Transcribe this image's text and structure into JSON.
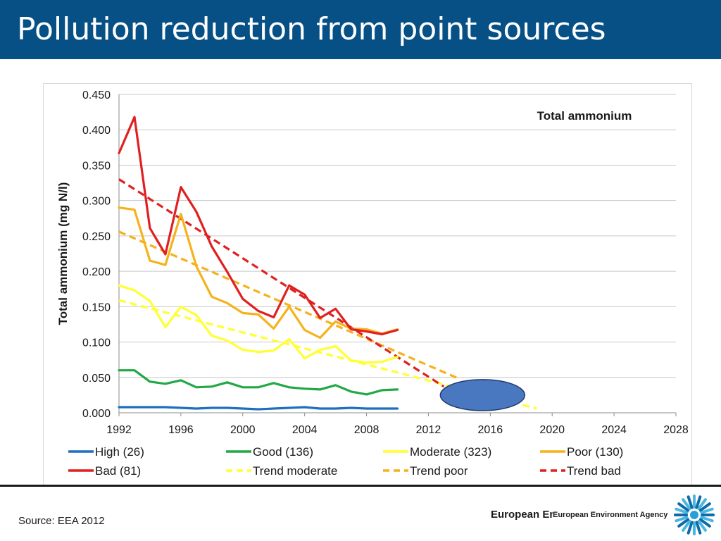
{
  "slide": {
    "title": "Pollution reduction from point sources",
    "source": "Source: EEA 2012",
    "agency_wordmark": "European Environment Agency",
    "agency_name": "European Environment Agency",
    "colors": {
      "title_bar": "#065085",
      "text": "#1a1a1a"
    }
  },
  "chart_data": {
    "type": "line",
    "title": "Total ammonium",
    "ylabel": "Total ammonium (mg N/l)",
    "xlabel": "",
    "xlim": [
      1992,
      2028
    ],
    "ylim": [
      0,
      0.45
    ],
    "x_ticks": [
      "1992",
      "1996",
      "2000",
      "2004",
      "2008",
      "2012",
      "2016",
      "2020",
      "2024",
      "2028"
    ],
    "y_ticks": [
      "0.000",
      "0.050",
      "0.100",
      "0.150",
      "0.200",
      "0.250",
      "0.300",
      "0.350",
      "0.400",
      "0.450"
    ],
    "grid": "horizontal",
    "legend_position": "bottom",
    "series": [
      {
        "name": "High (26)",
        "color": "#1f6fbf",
        "dash": false,
        "x": [
          1992,
          1993,
          1994,
          1995,
          1996,
          1997,
          1998,
          1999,
          2000,
          2001,
          2002,
          2003,
          2004,
          2005,
          2006,
          2007,
          2008,
          2009,
          2010
        ],
        "y": [
          0.008,
          0.008,
          0.008,
          0.008,
          0.007,
          0.006,
          0.007,
          0.007,
          0.006,
          0.005,
          0.006,
          0.007,
          0.008,
          0.006,
          0.006,
          0.007,
          0.006,
          0.006,
          0.006
        ]
      },
      {
        "name": "Good (136)",
        "color": "#22a845",
        "dash": false,
        "x": [
          1992,
          1993,
          1994,
          1995,
          1996,
          1997,
          1998,
          1999,
          2000,
          2001,
          2002,
          2003,
          2004,
          2005,
          2006,
          2007,
          2008,
          2009,
          2010
        ],
        "y": [
          0.06,
          0.06,
          0.044,
          0.041,
          0.046,
          0.036,
          0.037,
          0.043,
          0.036,
          0.036,
          0.042,
          0.036,
          0.034,
          0.033,
          0.039,
          0.03,
          0.026,
          0.032,
          0.033
        ]
      },
      {
        "name": "Moderate (323)",
        "color": "#ffff33",
        "dash": false,
        "x": [
          1992,
          1993,
          1994,
          1995,
          1996,
          1997,
          1998,
          1999,
          2000,
          2001,
          2002,
          2003,
          2004,
          2005,
          2006,
          2007,
          2008,
          2009,
          2010
        ],
        "y": [
          0.18,
          0.173,
          0.158,
          0.121,
          0.15,
          0.138,
          0.109,
          0.102,
          0.089,
          0.086,
          0.088,
          0.104,
          0.077,
          0.089,
          0.094,
          0.074,
          0.071,
          0.072,
          0.079
        ]
      },
      {
        "name": "Poor (130)",
        "color": "#f5b21b",
        "dash": false,
        "x": [
          1992,
          1993,
          1994,
          1995,
          1996,
          1997,
          1998,
          1999,
          2000,
          2001,
          2002,
          2003,
          2004,
          2005,
          2006,
          2007,
          2008,
          2009,
          2010
        ],
        "y": [
          0.29,
          0.287,
          0.215,
          0.209,
          0.281,
          0.207,
          0.164,
          0.155,
          0.141,
          0.139,
          0.119,
          0.15,
          0.117,
          0.106,
          0.129,
          0.119,
          0.118,
          0.112,
          0.118
        ]
      },
      {
        "name": "Bad (81)",
        "color": "#e02020",
        "dash": false,
        "x": [
          1992,
          1993,
          1994,
          1995,
          1996,
          1997,
          1998,
          1999,
          2000,
          2001,
          2002,
          2003,
          2004,
          2005,
          2006,
          2007,
          2008,
          2009,
          2010
        ],
        "y": [
          0.367,
          0.418,
          0.261,
          0.224,
          0.319,
          0.284,
          0.235,
          0.199,
          0.161,
          0.144,
          0.135,
          0.18,
          0.167,
          0.134,
          0.147,
          0.118,
          0.115,
          0.111,
          0.117
        ]
      },
      {
        "name": "Trend moderate",
        "color": "#ffff33",
        "dash": true,
        "x": [
          1992,
          2019
        ],
        "y": [
          0.159,
          0.006
        ]
      },
      {
        "name": "Trend poor",
        "color": "#f5b21b",
        "dash": true,
        "x": [
          1992,
          2014
        ],
        "y": [
          0.256,
          0.048
        ]
      },
      {
        "name": "Trend bad",
        "color": "#e02020",
        "dash": true,
        "x": [
          1992,
          2013
        ],
        "y": [
          0.33,
          0.037
        ]
      }
    ],
    "annotation": {
      "shape": "ellipse",
      "fill": "#4a78c0",
      "stroke": "#1f3d6e",
      "x": 2015.5,
      "y": 0.025
    }
  }
}
